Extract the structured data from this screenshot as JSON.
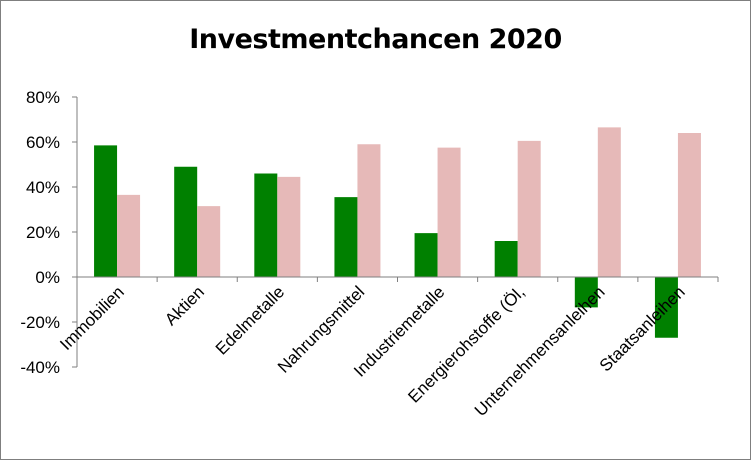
{
  "chart_data": {
    "type": "bar",
    "title": "Investmentchancen 2020",
    "xlabel": "",
    "ylabel": "",
    "ylim": [
      -0.4,
      0.8
    ],
    "ytick_values": [
      -0.4,
      -0.2,
      0,
      0.2,
      0.4,
      0.6,
      0.8
    ],
    "ytick_labels": [
      "-40%",
      "-20%",
      "0%",
      "20%",
      "40%",
      "60%",
      "80%"
    ],
    "grid": false,
    "legend": "none",
    "categories": [
      "Immobilien",
      "Aktien",
      "Edelmetalle",
      "Nahrungsmittel",
      "Industriemetalle",
      "Energierohstoffe (Öl,",
      "Unternehmensanleihen",
      "Staatsanleihen"
    ],
    "series": [
      {
        "color": "#008000",
        "values": [
          0.585,
          0.49,
          0.46,
          0.355,
          0.195,
          0.16,
          -0.135,
          -0.27
        ]
      },
      {
        "color": "#e6b9b8",
        "values": [
          0.365,
          0.315,
          0.445,
          0.59,
          0.575,
          0.605,
          0.665,
          0.64
        ]
      }
    ]
  }
}
